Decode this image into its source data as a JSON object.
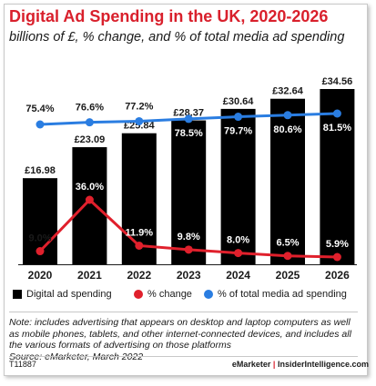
{
  "title": "Digital Ad Spending in the UK, 2020-2026",
  "subtitle": "billions of £, % change, and % of total media ad spending",
  "legend": {
    "spending": "Digital ad spending",
    "change": "% change",
    "share": "% of total media ad spending"
  },
  "note": "Note: includes advertising that appears on desktop and laptop computers as well as mobile phones, tablets, and other internet-connected devices, and includes all the various formats of advertising on those platforms",
  "source": "Source: eMarketer, March 2022",
  "code": "T11887",
  "brand": {
    "left": "eMarketer",
    "separator": "|",
    "right": "InsiderIntelligence.com"
  },
  "colors": {
    "bar": "#000000",
    "change": "#e0202c",
    "share": "#2a7de1",
    "title": "#d9202c"
  },
  "chart_data": {
    "type": "bar",
    "categories": [
      "2020",
      "2021",
      "2022",
      "2023",
      "2024",
      "2025",
      "2026"
    ],
    "series": [
      {
        "name": "Digital ad spending",
        "type": "bar",
        "values": [
          16.98,
          23.09,
          25.84,
          28.37,
          30.64,
          32.64,
          34.56
        ],
        "labels": [
          "£16.98",
          "£23.09",
          "£25.84",
          "£28.37",
          "£30.64",
          "£32.64",
          "£34.56"
        ]
      },
      {
        "name": "% change",
        "type": "line",
        "values": [
          9.0,
          36.0,
          11.9,
          9.8,
          8.0,
          6.5,
          5.9
        ],
        "labels": [
          "9.0%",
          "36.0%",
          "11.9%",
          "9.8%",
          "8.0%",
          "6.5%",
          "5.9%"
        ]
      },
      {
        "name": "% of total media ad spending",
        "type": "line",
        "values": [
          75.4,
          76.6,
          77.2,
          78.5,
          79.7,
          80.6,
          81.5
        ],
        "labels": [
          "75.4%",
          "76.6%",
          "77.2%",
          "78.5%",
          "79.7%",
          "80.6%",
          "81.5%"
        ]
      }
    ],
    "legend_position": "bottom",
    "grid": false
  }
}
